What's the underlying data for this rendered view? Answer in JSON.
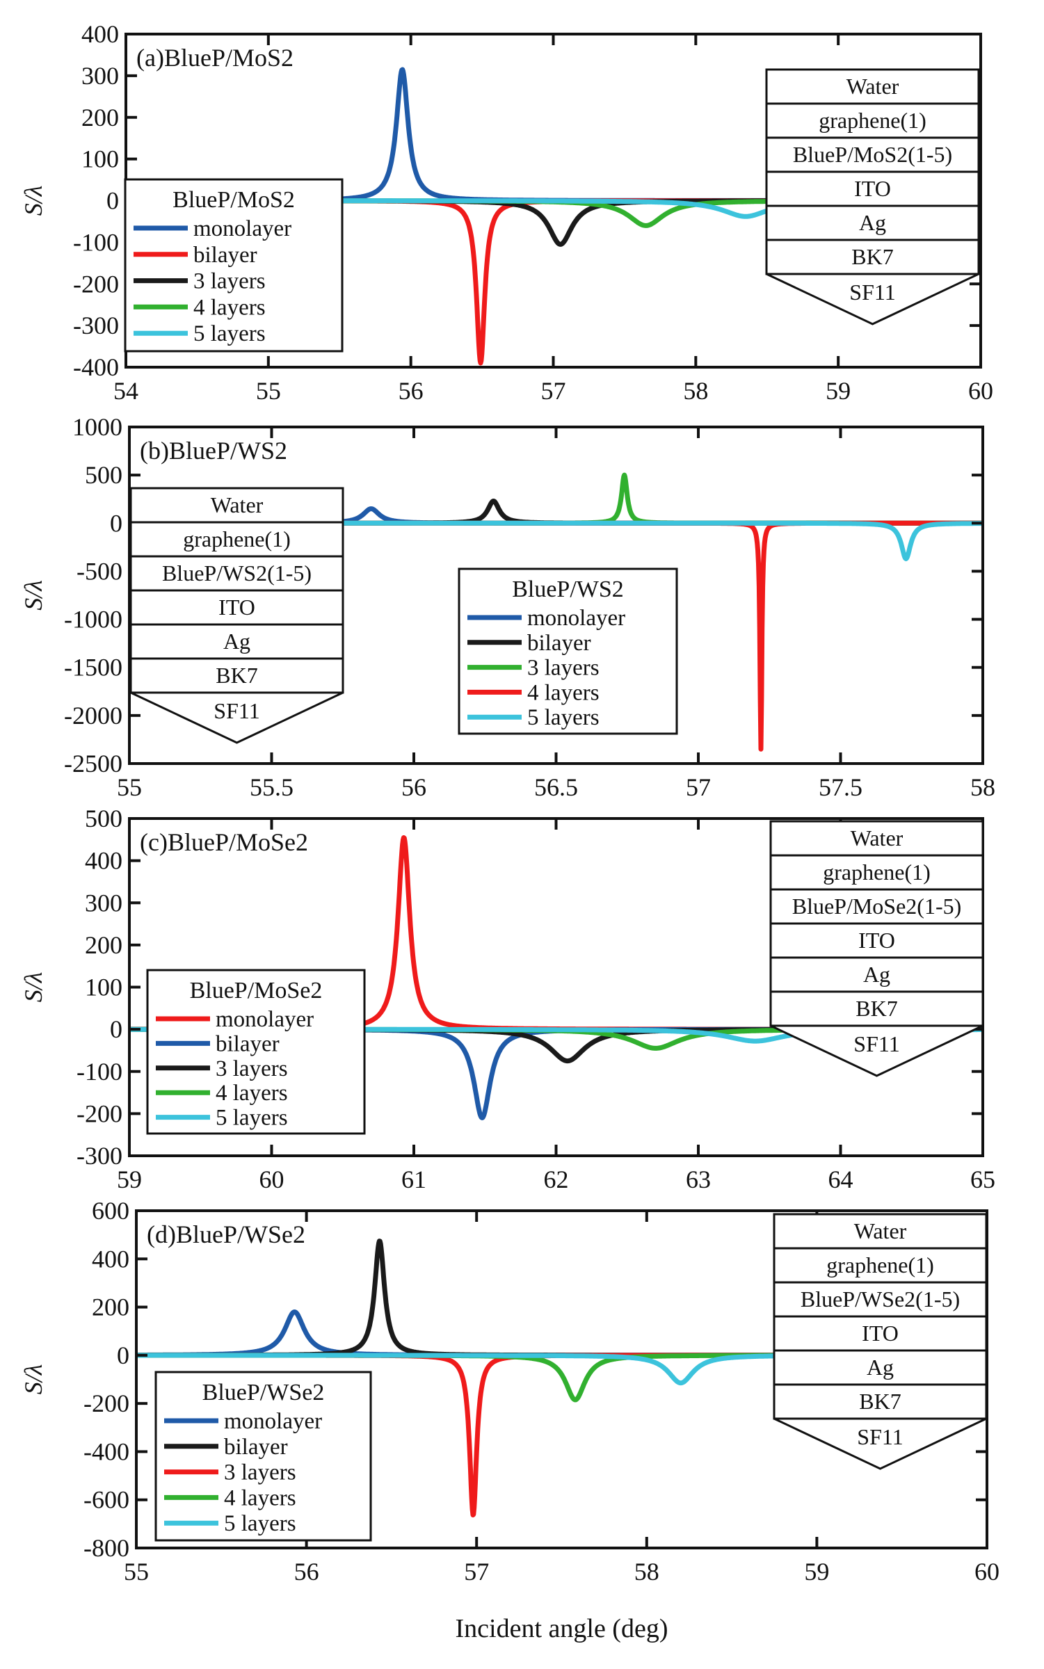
{
  "figure": {
    "xlabel": "Incident angle (deg)"
  },
  "colors": {
    "blue": "#1f5aa8",
    "red": "#ef1b1b",
    "black": "#1a1a1a",
    "green": "#31b02f",
    "cyan": "#3cc3dc"
  },
  "chart_data": [
    {
      "type": "line",
      "title": "(a)BlueP/MoS2",
      "ylabel": "S/λ",
      "xlim": [
        54,
        60
      ],
      "ylim": [
        -400,
        400
      ],
      "xticks": [
        "54",
        "55",
        "56",
        "57",
        "58",
        "59",
        "60"
      ],
      "yticks": [
        "400",
        "300",
        "200",
        "100",
        "0",
        "-100",
        "-200",
        "-300",
        "-400"
      ],
      "legend": {
        "title": "BlueP/MoS2",
        "position": "left",
        "entries": [
          {
            "label": "monolayer",
            "color": "blue"
          },
          {
            "label": "bilayer",
            "color": "red"
          },
          {
            "label": "3 layers",
            "color": "black"
          },
          {
            "label": "4 layers",
            "color": "green"
          },
          {
            "label": "5 layers",
            "color": "cyan"
          }
        ]
      },
      "structure": {
        "position": "right",
        "layers": [
          "Water",
          "graphene(1)",
          "BlueP/MoS2(1-5)",
          "ITO",
          "Ag",
          "BK7"
        ],
        "prism": "SF11"
      },
      "series": [
        {
          "name": "monolayer",
          "color": "blue",
          "peak_x": 55.94,
          "peak_y": 315,
          "width": 0.05
        },
        {
          "name": "bilayer",
          "color": "red",
          "peak_x": 56.49,
          "peak_y": -390,
          "width": 0.035
        },
        {
          "name": "3 layers",
          "color": "black",
          "peak_x": 57.05,
          "peak_y": -105,
          "width": 0.1
        },
        {
          "name": "4 layers",
          "color": "green",
          "peak_x": 57.65,
          "peak_y": -60,
          "width": 0.15
        },
        {
          "name": "5 layers",
          "color": "cyan",
          "peak_x": 58.35,
          "peak_y": -38,
          "width": 0.2
        }
      ]
    },
    {
      "type": "line",
      "title": "(b)BlueP/WS2",
      "ylabel": "S/λ",
      "xlim": [
        55,
        58
      ],
      "ylim": [
        -2500,
        1000
      ],
      "xticks": [
        "55",
        "55.5",
        "56",
        "56.5",
        "57",
        "57.5",
        "58"
      ],
      "yticks": [
        "1000",
        "500",
        "0",
        "-500",
        "-1000",
        "-1500",
        "-2000",
        "-2500"
      ],
      "legend": {
        "title": "BlueP/WS2",
        "position": "center",
        "entries": [
          {
            "label": "monolayer",
            "color": "blue"
          },
          {
            "label": "bilayer",
            "color": "black"
          },
          {
            "label": "3 layers",
            "color": "green"
          },
          {
            "label": "4 layers",
            "color": "red"
          },
          {
            "label": "5 layers",
            "color": "cyan"
          }
        ]
      },
      "structure": {
        "position": "left",
        "layers": [
          "Water",
          "graphene(1)",
          "BlueP/WS2(1-5)",
          "ITO",
          "Ag",
          "BK7"
        ],
        "prism": "SF11"
      },
      "series": [
        {
          "name": "monolayer",
          "color": "blue",
          "peak_x": 55.85,
          "peak_y": 150,
          "width": 0.035
        },
        {
          "name": "bilayer",
          "color": "black",
          "peak_x": 56.28,
          "peak_y": 230,
          "width": 0.025
        },
        {
          "name": "3 layers",
          "color": "green",
          "peak_x": 56.74,
          "peak_y": 500,
          "width": 0.012
        },
        {
          "name": "4 layers",
          "color": "red",
          "peak_x": 57.22,
          "peak_y": -2350,
          "width": 0.004
        },
        {
          "name": "5 layers",
          "color": "cyan",
          "peak_x": 57.73,
          "peak_y": -370,
          "width": 0.02
        }
      ]
    },
    {
      "type": "line",
      "title": "(c)BlueP/MoSe2",
      "ylabel": "S/λ",
      "xlim": [
        59,
        65
      ],
      "ylim": [
        -300,
        500
      ],
      "xticks": [
        "59",
        "60",
        "61",
        "62",
        "63",
        "64",
        "65"
      ],
      "yticks": [
        "500",
        "400",
        "300",
        "200",
        "100",
        "0",
        "-100",
        "-200",
        "-300"
      ],
      "legend": {
        "title": "BlueP/MoSe2",
        "position": "left",
        "entries": [
          {
            "label": "monolayer",
            "color": "red"
          },
          {
            "label": "bilayer",
            "color": "blue"
          },
          {
            "label": "3 layers",
            "color": "black"
          },
          {
            "label": "4 layers",
            "color": "green"
          },
          {
            "label": "5 layers",
            "color": "cyan"
          }
        ]
      },
      "structure": {
        "position": "right",
        "layers": [
          "Water",
          "graphene(1)",
          "BlueP/MoSe2(1-5)",
          "ITO",
          "Ag",
          "BK7"
        ],
        "prism": "SF11"
      },
      "series": [
        {
          "name": "monolayer",
          "color": "red",
          "peak_x": 60.93,
          "peak_y": 455,
          "width": 0.05
        },
        {
          "name": "bilayer",
          "color": "blue",
          "peak_x": 61.48,
          "peak_y": -210,
          "width": 0.07
        },
        {
          "name": "3 layers",
          "color": "black",
          "peak_x": 62.08,
          "peak_y": -75,
          "width": 0.15
        },
        {
          "name": "4 layers",
          "color": "green",
          "peak_x": 62.7,
          "peak_y": -45,
          "width": 0.2
        },
        {
          "name": "5 layers",
          "color": "cyan",
          "peak_x": 63.4,
          "peak_y": -28,
          "width": 0.25
        }
      ]
    },
    {
      "type": "line",
      "title": "(d)BlueP/WSe2",
      "ylabel": "S/λ",
      "xlim": [
        55,
        60
      ],
      "ylim": [
        -800,
        600
      ],
      "xticks": [
        "55",
        "56",
        "57",
        "58",
        "59",
        "60"
      ],
      "yticks": [
        "600",
        "400",
        "200",
        "0",
        "-200",
        "-400",
        "-600",
        "-800"
      ],
      "legend": {
        "title": "BlueP/WSe2",
        "position": "left",
        "entries": [
          {
            "label": "monolayer",
            "color": "blue"
          },
          {
            "label": "bilayer",
            "color": "black"
          },
          {
            "label": "3 layers",
            "color": "red"
          },
          {
            "label": "4 layers",
            "color": "green"
          },
          {
            "label": "5 layers",
            "color": "cyan"
          }
        ]
      },
      "structure": {
        "position": "right",
        "layers": [
          "Water",
          "graphene(1)",
          "BlueP/WSe2(1-5)",
          "ITO",
          "Ag",
          "BK7"
        ],
        "prism": "SF11"
      },
      "series": [
        {
          "name": "monolayer",
          "color": "blue",
          "peak_x": 55.93,
          "peak_y": 180,
          "width": 0.07
        },
        {
          "name": "bilayer",
          "color": "black",
          "peak_x": 56.43,
          "peak_y": 475,
          "width": 0.035
        },
        {
          "name": "3 layers",
          "color": "red",
          "peak_x": 56.98,
          "peak_y": -665,
          "width": 0.025
        },
        {
          "name": "4 layers",
          "color": "green",
          "peak_x": 57.58,
          "peak_y": -185,
          "width": 0.07
        },
        {
          "name": "5 layers",
          "color": "cyan",
          "peak_x": 58.2,
          "peak_y": -115,
          "width": 0.09
        }
      ]
    }
  ]
}
